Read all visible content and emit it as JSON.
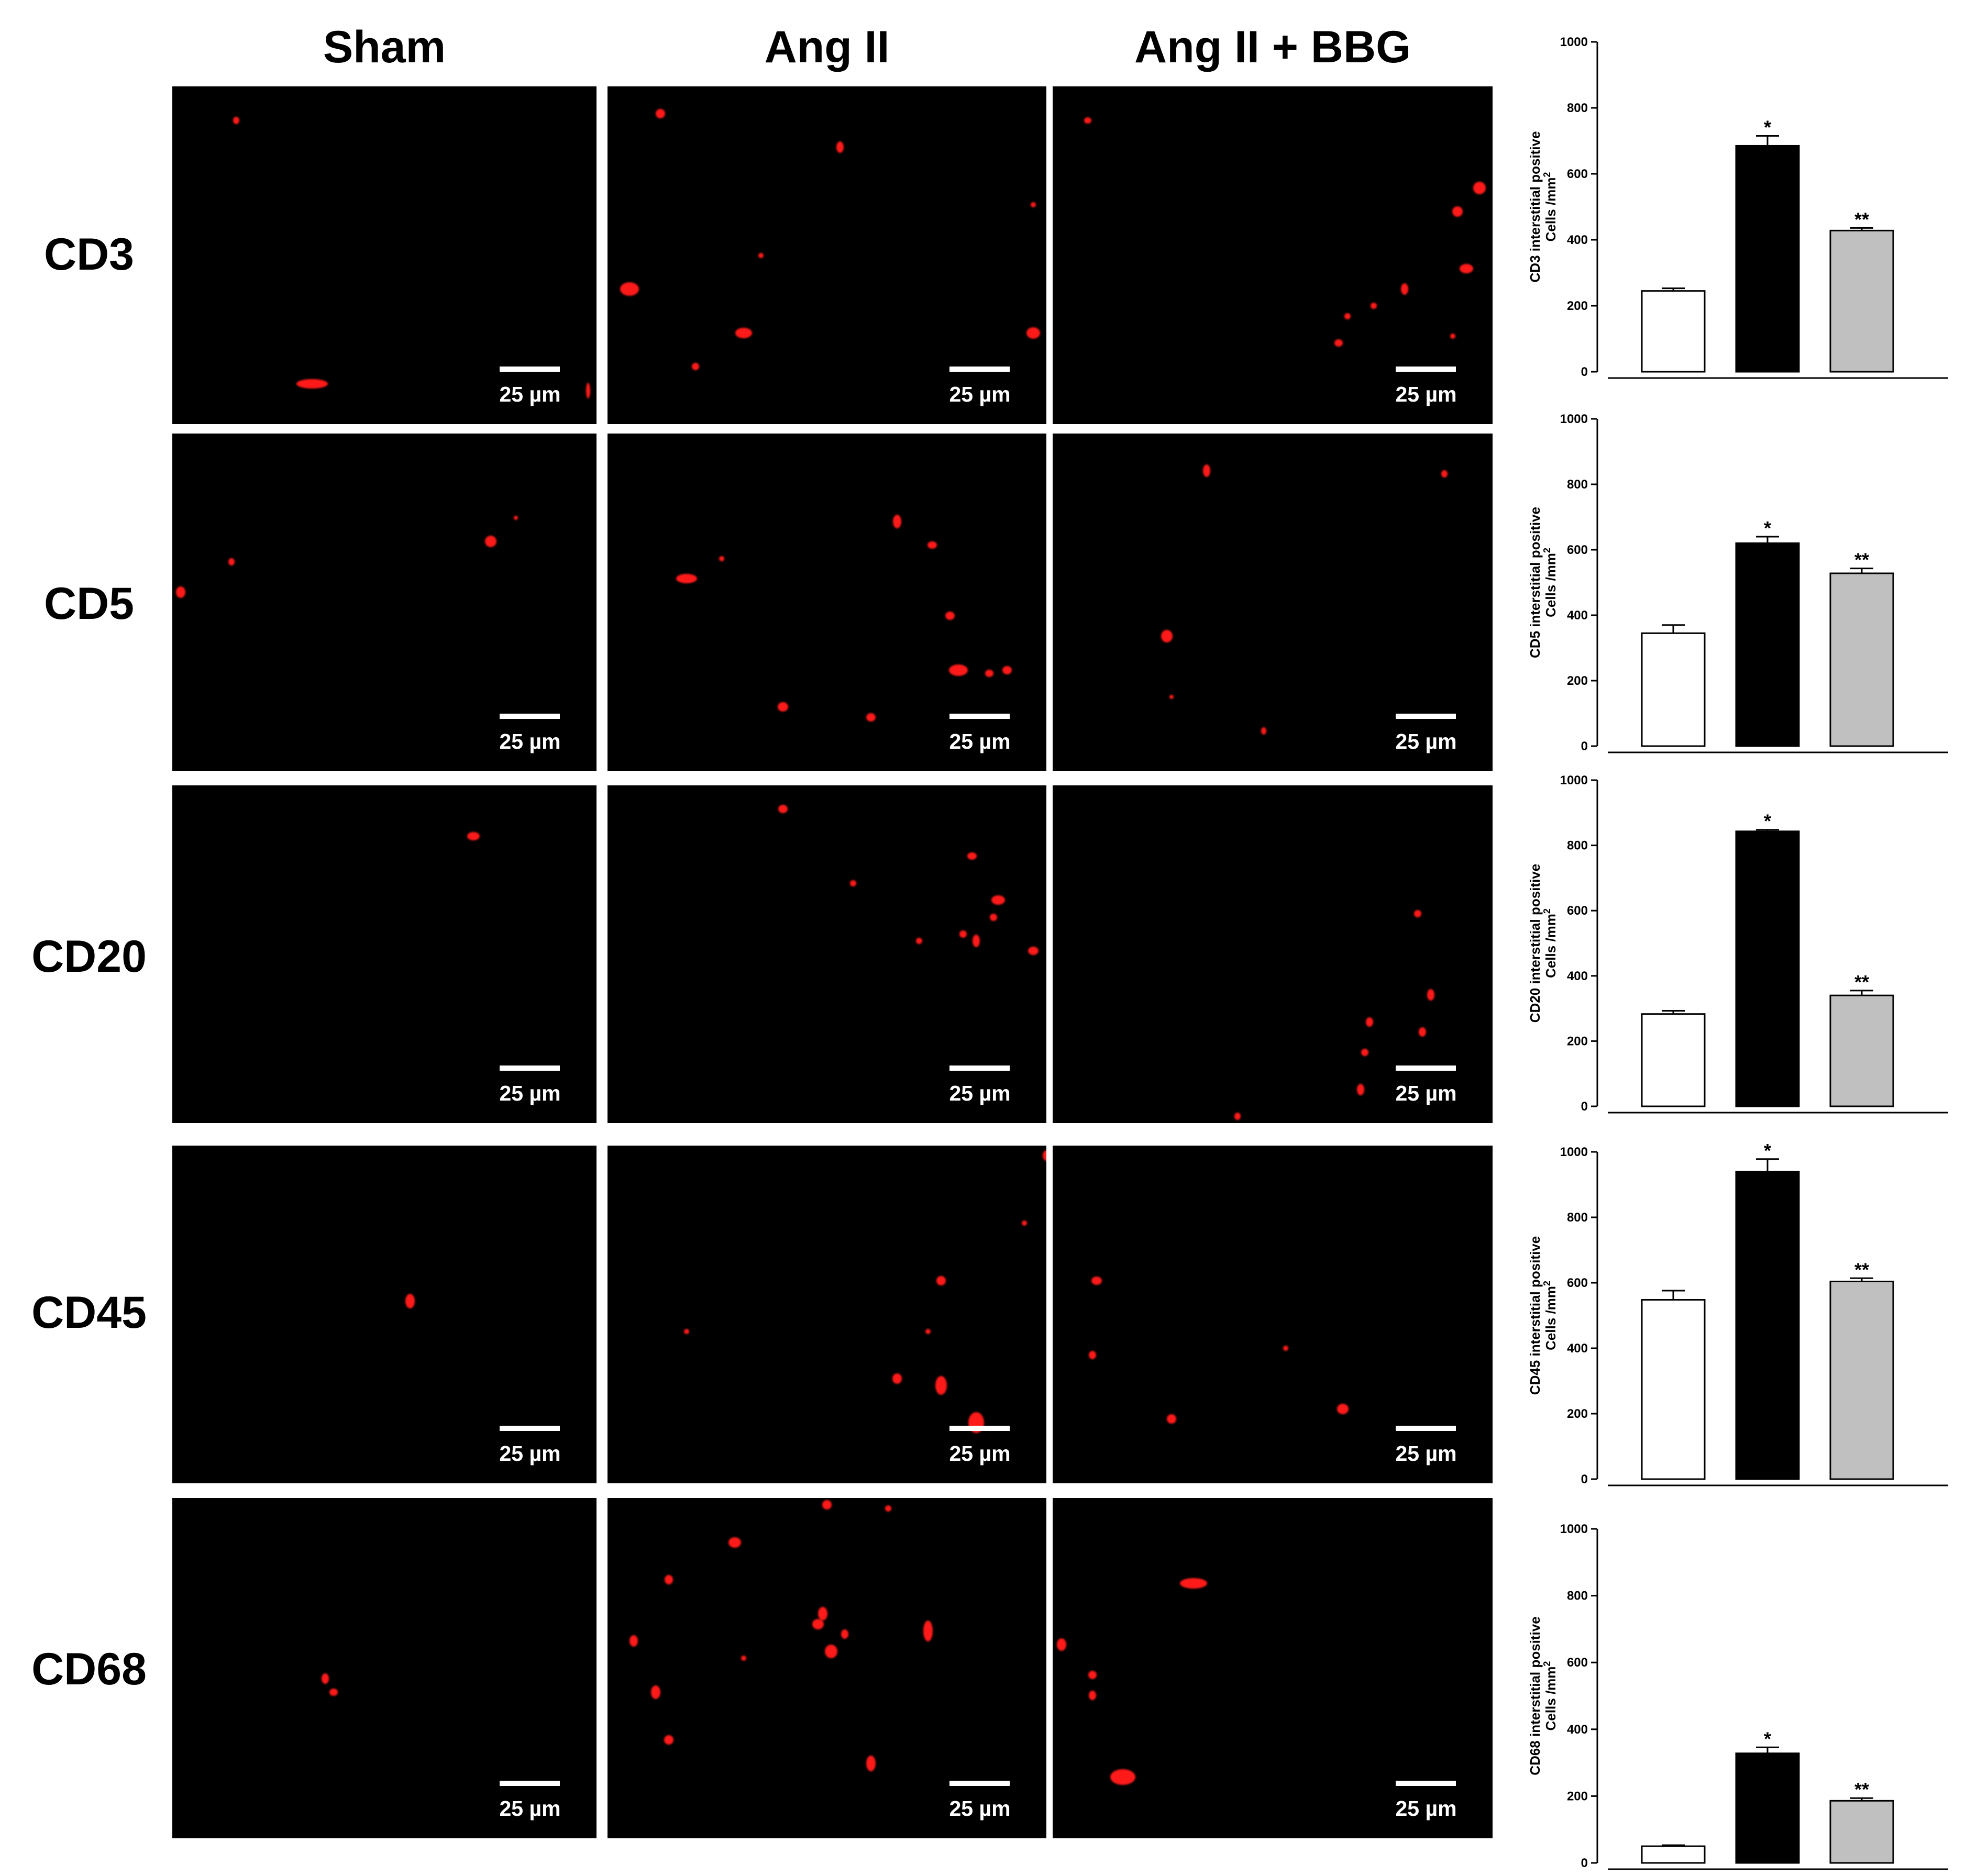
{
  "columns": [
    "Sham",
    "Ang II",
    "Ang II + BBG"
  ],
  "rows": [
    "CD3",
    "CD5",
    "CD20",
    "CD45",
    "CD68"
  ],
  "scale_label": "25 µm",
  "colors": {
    "panel_background": "#000000",
    "stain": "#ff1a1a",
    "bar_sham": "#ffffff",
    "bar_angii": "#000000",
    "bar_bbg": "#c0c0c0"
  },
  "chart_data": [
    {
      "type": "bar",
      "marker": "CD3",
      "ylabel_line1": "CD3 interstitial positive",
      "ylabel_line2": "Cells /mm",
      "ylabel_sup": "2",
      "ylim": [
        0,
        1000
      ],
      "yticks": [
        0,
        200,
        400,
        600,
        800,
        1000
      ],
      "series": [
        {
          "name": "",
          "values": [
            245
          ],
          "error": [
            8
          ],
          "significance": ""
        },
        {
          "name": "",
          "values": [
            685
          ],
          "error": [
            30
          ],
          "significance": "*"
        },
        {
          "name": "",
          "values": [
            428
          ],
          "error": [
            8
          ],
          "significance": "**"
        }
      ]
    },
    {
      "type": "bar",
      "marker": "CD5",
      "ylabel_line1": "CD5 interstitial positive",
      "ylabel_line2": "Cells /mm",
      "ylabel_sup": "2",
      "ylim": [
        0,
        1000
      ],
      "yticks": [
        0,
        200,
        400,
        600,
        800,
        1000
      ],
      "series": [
        {
          "name": "",
          "values": [
            345
          ],
          "error": [
            25
          ],
          "significance": ""
        },
        {
          "name": "",
          "values": [
            620
          ],
          "error": [
            20
          ],
          "significance": "*"
        },
        {
          "name": "",
          "values": [
            528
          ],
          "error": [
            15
          ],
          "significance": "**"
        }
      ]
    },
    {
      "type": "bar",
      "marker": "CD20",
      "ylabel_line1": "CD20 interstitial positive",
      "ylabel_line2": "Cells /mm",
      "ylabel_sup": "2",
      "ylim": [
        0,
        1000
      ],
      "yticks": [
        0,
        200,
        400,
        600,
        800,
        1000
      ],
      "series": [
        {
          "name": "",
          "values": [
            283
          ],
          "error": [
            10
          ],
          "significance": ""
        },
        {
          "name": "",
          "values": [
            843
          ],
          "error": [
            5
          ],
          "significance": "*"
        },
        {
          "name": "",
          "values": [
            340
          ],
          "error": [
            15
          ],
          "significance": "**"
        }
      ]
    },
    {
      "type": "bar",
      "marker": "CD45",
      "ylabel_line1": "CD45 interstitial positive",
      "ylabel_line2": "Cells /mm",
      "ylabel_sup": "2",
      "ylim": [
        0,
        1000
      ],
      "yticks": [
        0,
        200,
        400,
        600,
        800,
        1000
      ],
      "series": [
        {
          "name": "",
          "values": [
            548
          ],
          "error": [
            28
          ],
          "significance": ""
        },
        {
          "name": "",
          "values": [
            940
          ],
          "error": [
            38
          ],
          "significance": "*"
        },
        {
          "name": "",
          "values": [
            604
          ],
          "error": [
            10
          ],
          "significance": "**"
        }
      ]
    },
    {
      "type": "bar",
      "marker": "CD68",
      "ylabel_line1": "CD68 interstitial positive",
      "ylabel_line2": "Cells /mm",
      "ylabel_sup": "2",
      "ylim": [
        0,
        1000
      ],
      "yticks": [
        0,
        200,
        400,
        600,
        800,
        1000
      ],
      "series": [
        {
          "name": "",
          "values": [
            50
          ],
          "error": [
            3
          ],
          "significance": ""
        },
        {
          "name": "",
          "values": [
            328
          ],
          "error": [
            18
          ],
          "significance": "*"
        },
        {
          "name": "",
          "values": [
            186
          ],
          "error": [
            8
          ],
          "significance": "**"
        }
      ]
    }
  ]
}
